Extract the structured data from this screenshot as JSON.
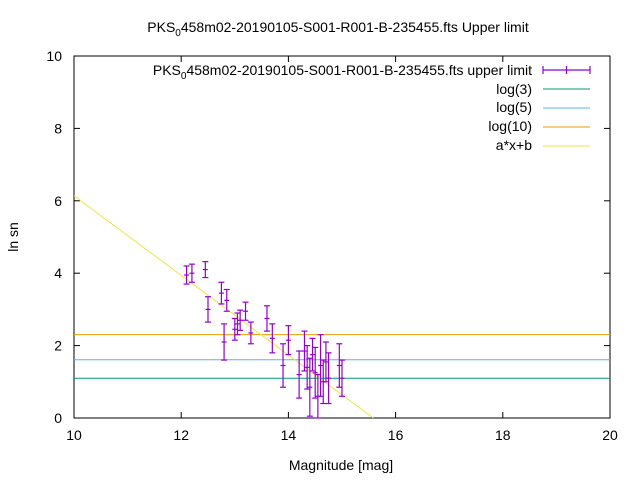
{
  "chart_data": {
    "type": "scatter",
    "title_prefix": "PKS",
    "title_sub": "0",
    "title_suffix": "458m02-20190105-S001-R001-B-235455.fts Upper limit",
    "xlabel": "Magnitude [mag]",
    "ylabel": "ln sn",
    "xlim": [
      10,
      20
    ],
    "ylim": [
      0,
      10
    ],
    "x_ticks": [
      "10",
      "12",
      "14",
      "16",
      "18",
      "20"
    ],
    "y_ticks": [
      "0",
      "2",
      "4",
      "6",
      "8",
      "10"
    ],
    "legend_position": "top-right",
    "colors": {
      "points": "#9400d3",
      "log3": "#009e73",
      "log5": "#56b4e9",
      "log10": "#e69f00",
      "fit": "#f0e442"
    },
    "legend": {
      "points_prefix": "PKS",
      "points_sub": "0",
      "points_suffix": "458m02-20190105-S001-R001-B-235455.fts upper limit",
      "log3": "log(3)",
      "log5": "log(5)",
      "log10": "log(10)",
      "fit": "a*x+b"
    },
    "hlines": [
      {
        "key": "log3",
        "y": 1.0986
      },
      {
        "key": "log5",
        "y": 1.6094
      },
      {
        "key": "log10",
        "y": 2.3026
      }
    ],
    "fit": {
      "a": -1.1,
      "b": 17.14
    },
    "points": [
      {
        "x": 12.1,
        "y": 3.95,
        "err": 0.25
      },
      {
        "x": 12.2,
        "y": 4.0,
        "err": 0.25
      },
      {
        "x": 12.45,
        "y": 4.1,
        "err": 0.22
      },
      {
        "x": 12.5,
        "y": 3.0,
        "err": 0.35
      },
      {
        "x": 12.75,
        "y": 3.45,
        "err": 0.3
      },
      {
        "x": 12.8,
        "y": 2.1,
        "err": 0.5
      },
      {
        "x": 12.85,
        "y": 3.25,
        "err": 0.3
      },
      {
        "x": 13.0,
        "y": 2.45,
        "err": 0.3
      },
      {
        "x": 13.05,
        "y": 2.6,
        "err": 0.3
      },
      {
        "x": 13.1,
        "y": 2.7,
        "err": 0.28
      },
      {
        "x": 13.2,
        "y": 2.95,
        "err": 0.25
      },
      {
        "x": 13.3,
        "y": 2.35,
        "err": 0.3
      },
      {
        "x": 13.6,
        "y": 2.75,
        "err": 0.35
      },
      {
        "x": 13.7,
        "y": 2.2,
        "err": 0.4
      },
      {
        "x": 13.9,
        "y": 1.45,
        "err": 0.6
      },
      {
        "x": 14.0,
        "y": 2.15,
        "err": 0.4
      },
      {
        "x": 14.2,
        "y": 1.2,
        "err": 0.65
      },
      {
        "x": 14.3,
        "y": 1.85,
        "err": 0.55
      },
      {
        "x": 14.35,
        "y": 1.4,
        "err": 0.6
      },
      {
        "x": 14.4,
        "y": 0.85,
        "err": 0.8
      },
      {
        "x": 14.45,
        "y": 1.75,
        "err": 0.45
      },
      {
        "x": 14.5,
        "y": 1.25,
        "err": 0.7
      },
      {
        "x": 14.55,
        "y": 0.6,
        "err": 0.6
      },
      {
        "x": 14.6,
        "y": 1.45,
        "err": 0.85
      },
      {
        "x": 14.65,
        "y": 1.0,
        "err": 0.6
      },
      {
        "x": 14.7,
        "y": 1.55,
        "err": 0.55
      },
      {
        "x": 14.75,
        "y": 1.1,
        "err": 0.7
      },
      {
        "x": 14.95,
        "y": 1.45,
        "err": 0.6
      },
      {
        "x": 15.0,
        "y": 1.1,
        "err": 0.5
      }
    ]
  }
}
